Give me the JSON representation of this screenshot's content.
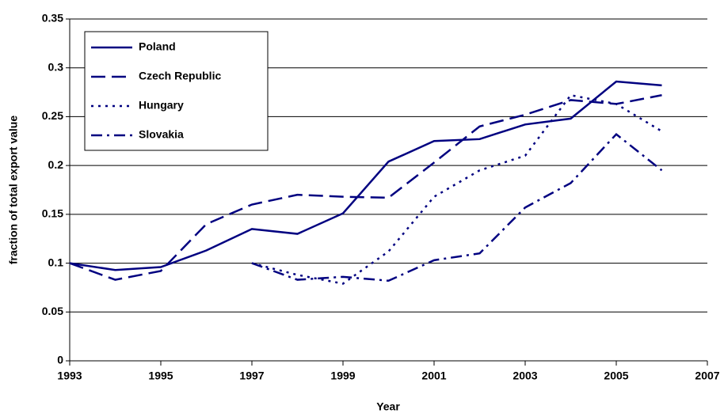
{
  "chart_data": {
    "type": "line",
    "xlabel": "Year",
    "ylabel": "fraction of total export value",
    "x": [
      1993,
      1994,
      1995,
      1996,
      1997,
      1998,
      1999,
      2000,
      2001,
      2002,
      2003,
      2004,
      2005,
      2006
    ],
    "series": [
      {
        "name": "Poland",
        "color": "#000080",
        "dash": "solid",
        "values": [
          0.1,
          0.093,
          0.096,
          0.113,
          0.135,
          0.13,
          0.151,
          0.204,
          0.225,
          0.227,
          0.242,
          0.248,
          0.286,
          0.282
        ]
      },
      {
        "name": "Czech Republic",
        "color": "#000080",
        "dash": "long",
        "values": [
          0.1,
          0.083,
          0.092,
          0.14,
          0.16,
          0.17,
          0.168,
          0.167,
          0.203,
          0.24,
          0.252,
          0.267,
          0.263,
          0.272
        ]
      },
      {
        "name": "Hungary",
        "color": "#000080",
        "dash": "dot",
        "values": [
          null,
          null,
          null,
          null,
          0.1,
          0.088,
          0.079,
          0.112,
          0.168,
          0.195,
          0.21,
          0.272,
          0.263,
          0.235
        ]
      },
      {
        "name": "Slovakia",
        "color": "#000080",
        "dash": "dashdot",
        "values": [
          null,
          null,
          null,
          null,
          0.1,
          0.083,
          0.086,
          0.082,
          0.103,
          0.11,
          0.157,
          0.182,
          0.232,
          0.195
        ]
      }
    ],
    "xlim": [
      1993,
      2007
    ],
    "xticks": [
      1993,
      1995,
      1997,
      1999,
      2001,
      2003,
      2005,
      2007
    ],
    "ylim": [
      0,
      0.35
    ],
    "yticks": [
      0,
      0.05,
      0.1,
      0.15,
      0.2,
      0.25,
      0.3,
      0.35
    ],
    "grid": true,
    "legend": "top-left"
  }
}
